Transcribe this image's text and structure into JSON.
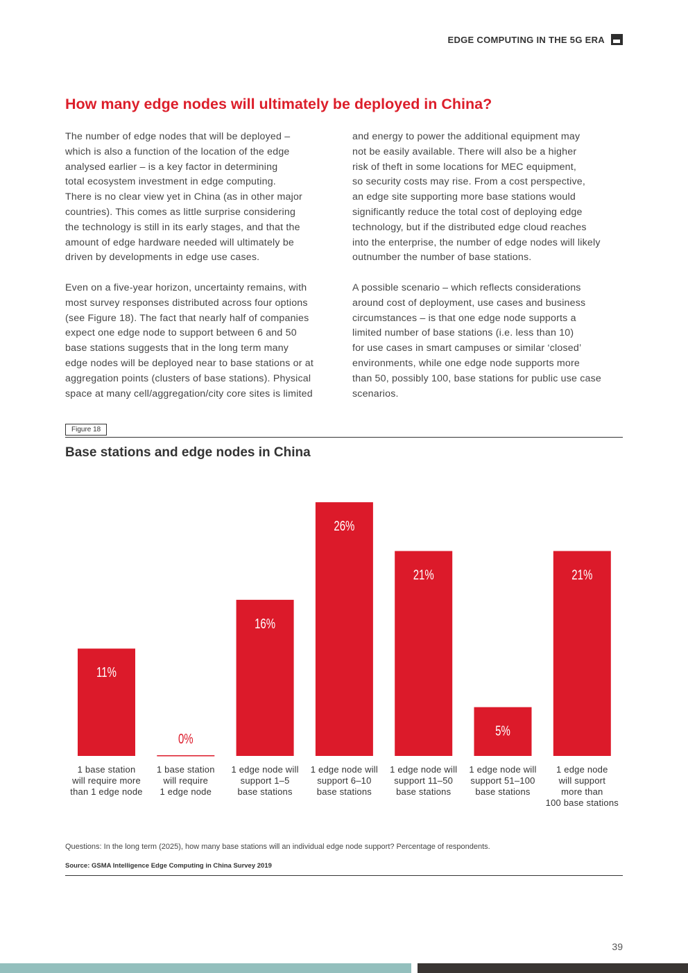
{
  "header": {
    "running_title": "EDGE COMPUTING IN THE 5G ERA",
    "icon": "section-marker-icon"
  },
  "title": "How many edge nodes will ultimately be deployed in China?",
  "body": {
    "left": [
      [
        "The number of edge nodes that will be deployed –",
        "which is also a function of the location of the edge",
        "analysed earlier – is a key factor in determining",
        "total ecosystem investment in edge computing.",
        "There is no clear view yet in China (as in other major",
        "countries). This comes as little surprise considering",
        "the technology is still in its early stages, and that the",
        "amount of edge hardware needed will ultimately be",
        "driven by developments in edge use cases."
      ],
      [
        "Even on a five-year horizon, uncertainty remains, with",
        "most survey responses distributed across four options",
        "(see Figure 18). The fact that nearly half of companies",
        "expect one edge node to support between 6 and 50",
        "base stations suggests that in the long term many",
        "edge nodes will be deployed near to base stations or at",
        "aggregation points (clusters of base stations). Physical",
        "space at many cell/aggregation/city core sites is limited"
      ]
    ],
    "right": [
      [
        "and energy to power the additional equipment may",
        "not be easily available. There will also be a higher",
        "risk of theft in some locations for MEC equipment,",
        "so security costs may rise. From a cost perspective,",
        "an edge site supporting more base stations would",
        "significantly reduce the total cost of deploying edge",
        "technology, but if the distributed edge cloud reaches",
        "into the enterprise, the number of edge nodes will likely",
        "outnumber the number of base stations."
      ],
      [
        "A possible scenario – which reflects considerations",
        "around cost of deployment, use cases and business",
        "circumstances – is that one edge node supports a",
        "limited number of base stations (i.e. less than 10)",
        "for use cases in smart campuses or similar ‘closed’",
        "environments, while one edge node supports more",
        "than 50, possibly 100, base stations for public use case",
        "scenarios."
      ]
    ]
  },
  "figure": {
    "label": "Figure 18",
    "title": "Base stations and edge nodes in China"
  },
  "chart_data": {
    "type": "bar",
    "title": "Base stations and edge nodes in China",
    "categories": [
      [
        "1 base station",
        "will require more",
        "than 1 edge node"
      ],
      [
        "1 base station",
        "will require",
        "1 edge node"
      ],
      [
        "1 edge node will",
        "support 1–5",
        "base stations"
      ],
      [
        "1 edge node will",
        "support 6–10",
        "base stations"
      ],
      [
        "1 edge node will",
        "support 11–50",
        "base stations"
      ],
      [
        "1 edge node will",
        "support 51–100",
        "base stations"
      ],
      [
        "1 edge node",
        "will support",
        "more than",
        "100 base stations"
      ]
    ],
    "values": [
      11,
      0,
      16,
      26,
      21,
      5,
      21
    ],
    "data_labels": [
      "11%",
      "0%",
      "16%",
      "26%",
      "21%",
      "5%",
      "21%"
    ],
    "unit": "%",
    "color": "#dc1a2a",
    "grid": false,
    "legend": "none"
  },
  "footer": {
    "question": "Questions: In the long term (2025), how many base stations will an individual edge node support? Percentage of respondents.",
    "source": "Source: GSMA Intelligence Edge Computing in China Survey 2019",
    "page_number": "39"
  }
}
